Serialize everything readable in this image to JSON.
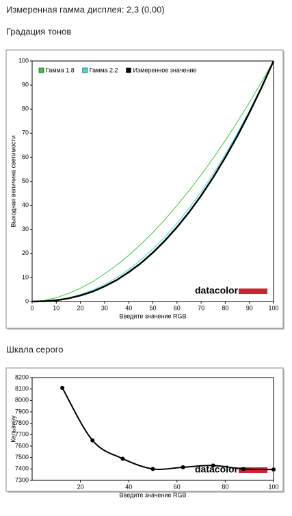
{
  "header": {
    "text": "Измеренная гамма дисплея: 2,3 (0,00)"
  },
  "chart_data": [
    {
      "type": "line",
      "title": "Градация тонов",
      "x_label": "Введите значение RGB",
      "y_label": "Выходная величина светимости",
      "logo": "datacolor",
      "x": [
        0,
        5,
        10,
        15,
        20,
        25,
        30,
        35,
        40,
        45,
        50,
        55,
        60,
        65,
        70,
        75,
        80,
        85,
        90,
        95,
        100
      ],
      "series": [
        {
          "name": "Гамма 1.8",
          "color": "#33cc33",
          "values": [
            0,
            0.5,
            1.6,
            3.3,
            5.5,
            8.2,
            11.5,
            15.1,
            19.2,
            23.8,
            28.7,
            34.1,
            39.9,
            46.1,
            52.6,
            59.6,
            66.9,
            74.6,
            82.7,
            91.2,
            100
          ]
        },
        {
          "name": "Гамма 2.2",
          "color": "#33dddd",
          "values": [
            0,
            0.1,
            0.6,
            1.5,
            2.9,
            4.7,
            7.1,
            9.9,
            13.3,
            17.3,
            21.8,
            26.8,
            32.5,
            38.8,
            45.6,
            53.1,
            61.2,
            69.9,
            79.3,
            89.3,
            100
          ]
        },
        {
          "name": "Измеренное значение",
          "color": "#000000",
          "values": [
            0,
            0.1,
            0.5,
            1.3,
            2.5,
            4.1,
            6.3,
            8.9,
            12.2,
            15.9,
            20.3,
            25.3,
            30.9,
            37.1,
            44.0,
            51.6,
            59.9,
            68.8,
            78.5,
            88.9,
            100
          ]
        }
      ],
      "xlim": [
        0,
        100
      ],
      "xticks": [
        0,
        10,
        20,
        30,
        40,
        50,
        60,
        70,
        80,
        90,
        100
      ],
      "ylim": [
        0,
        100
      ],
      "yticks": [
        0,
        10,
        20,
        30,
        40,
        50,
        60,
        70,
        80,
        90,
        100
      ],
      "legend": "top-left",
      "smooth": false,
      "markers": false
    },
    {
      "type": "line",
      "title": "Шкала серого",
      "x_label": "Введите значение RGB",
      "y_label": "Кельвину",
      "logo": "datacolor",
      "x": [
        12.5,
        25,
        37.5,
        50,
        62.5,
        75,
        87.5,
        100
      ],
      "series": [
        {
          "color": "#000000",
          "values": [
            8110,
            7650,
            7490,
            7400,
            7415,
            7430,
            7400,
            7395
          ]
        }
      ],
      "xlim": [
        0,
        100
      ],
      "xticks": [
        20,
        40,
        60,
        80,
        100
      ],
      "ylim": [
        7300,
        8200
      ],
      "yticks": [
        7300,
        7400,
        7500,
        7600,
        7700,
        7800,
        7900,
        8000,
        8100,
        8200
      ],
      "smooth": true,
      "markers": true
    }
  ]
}
